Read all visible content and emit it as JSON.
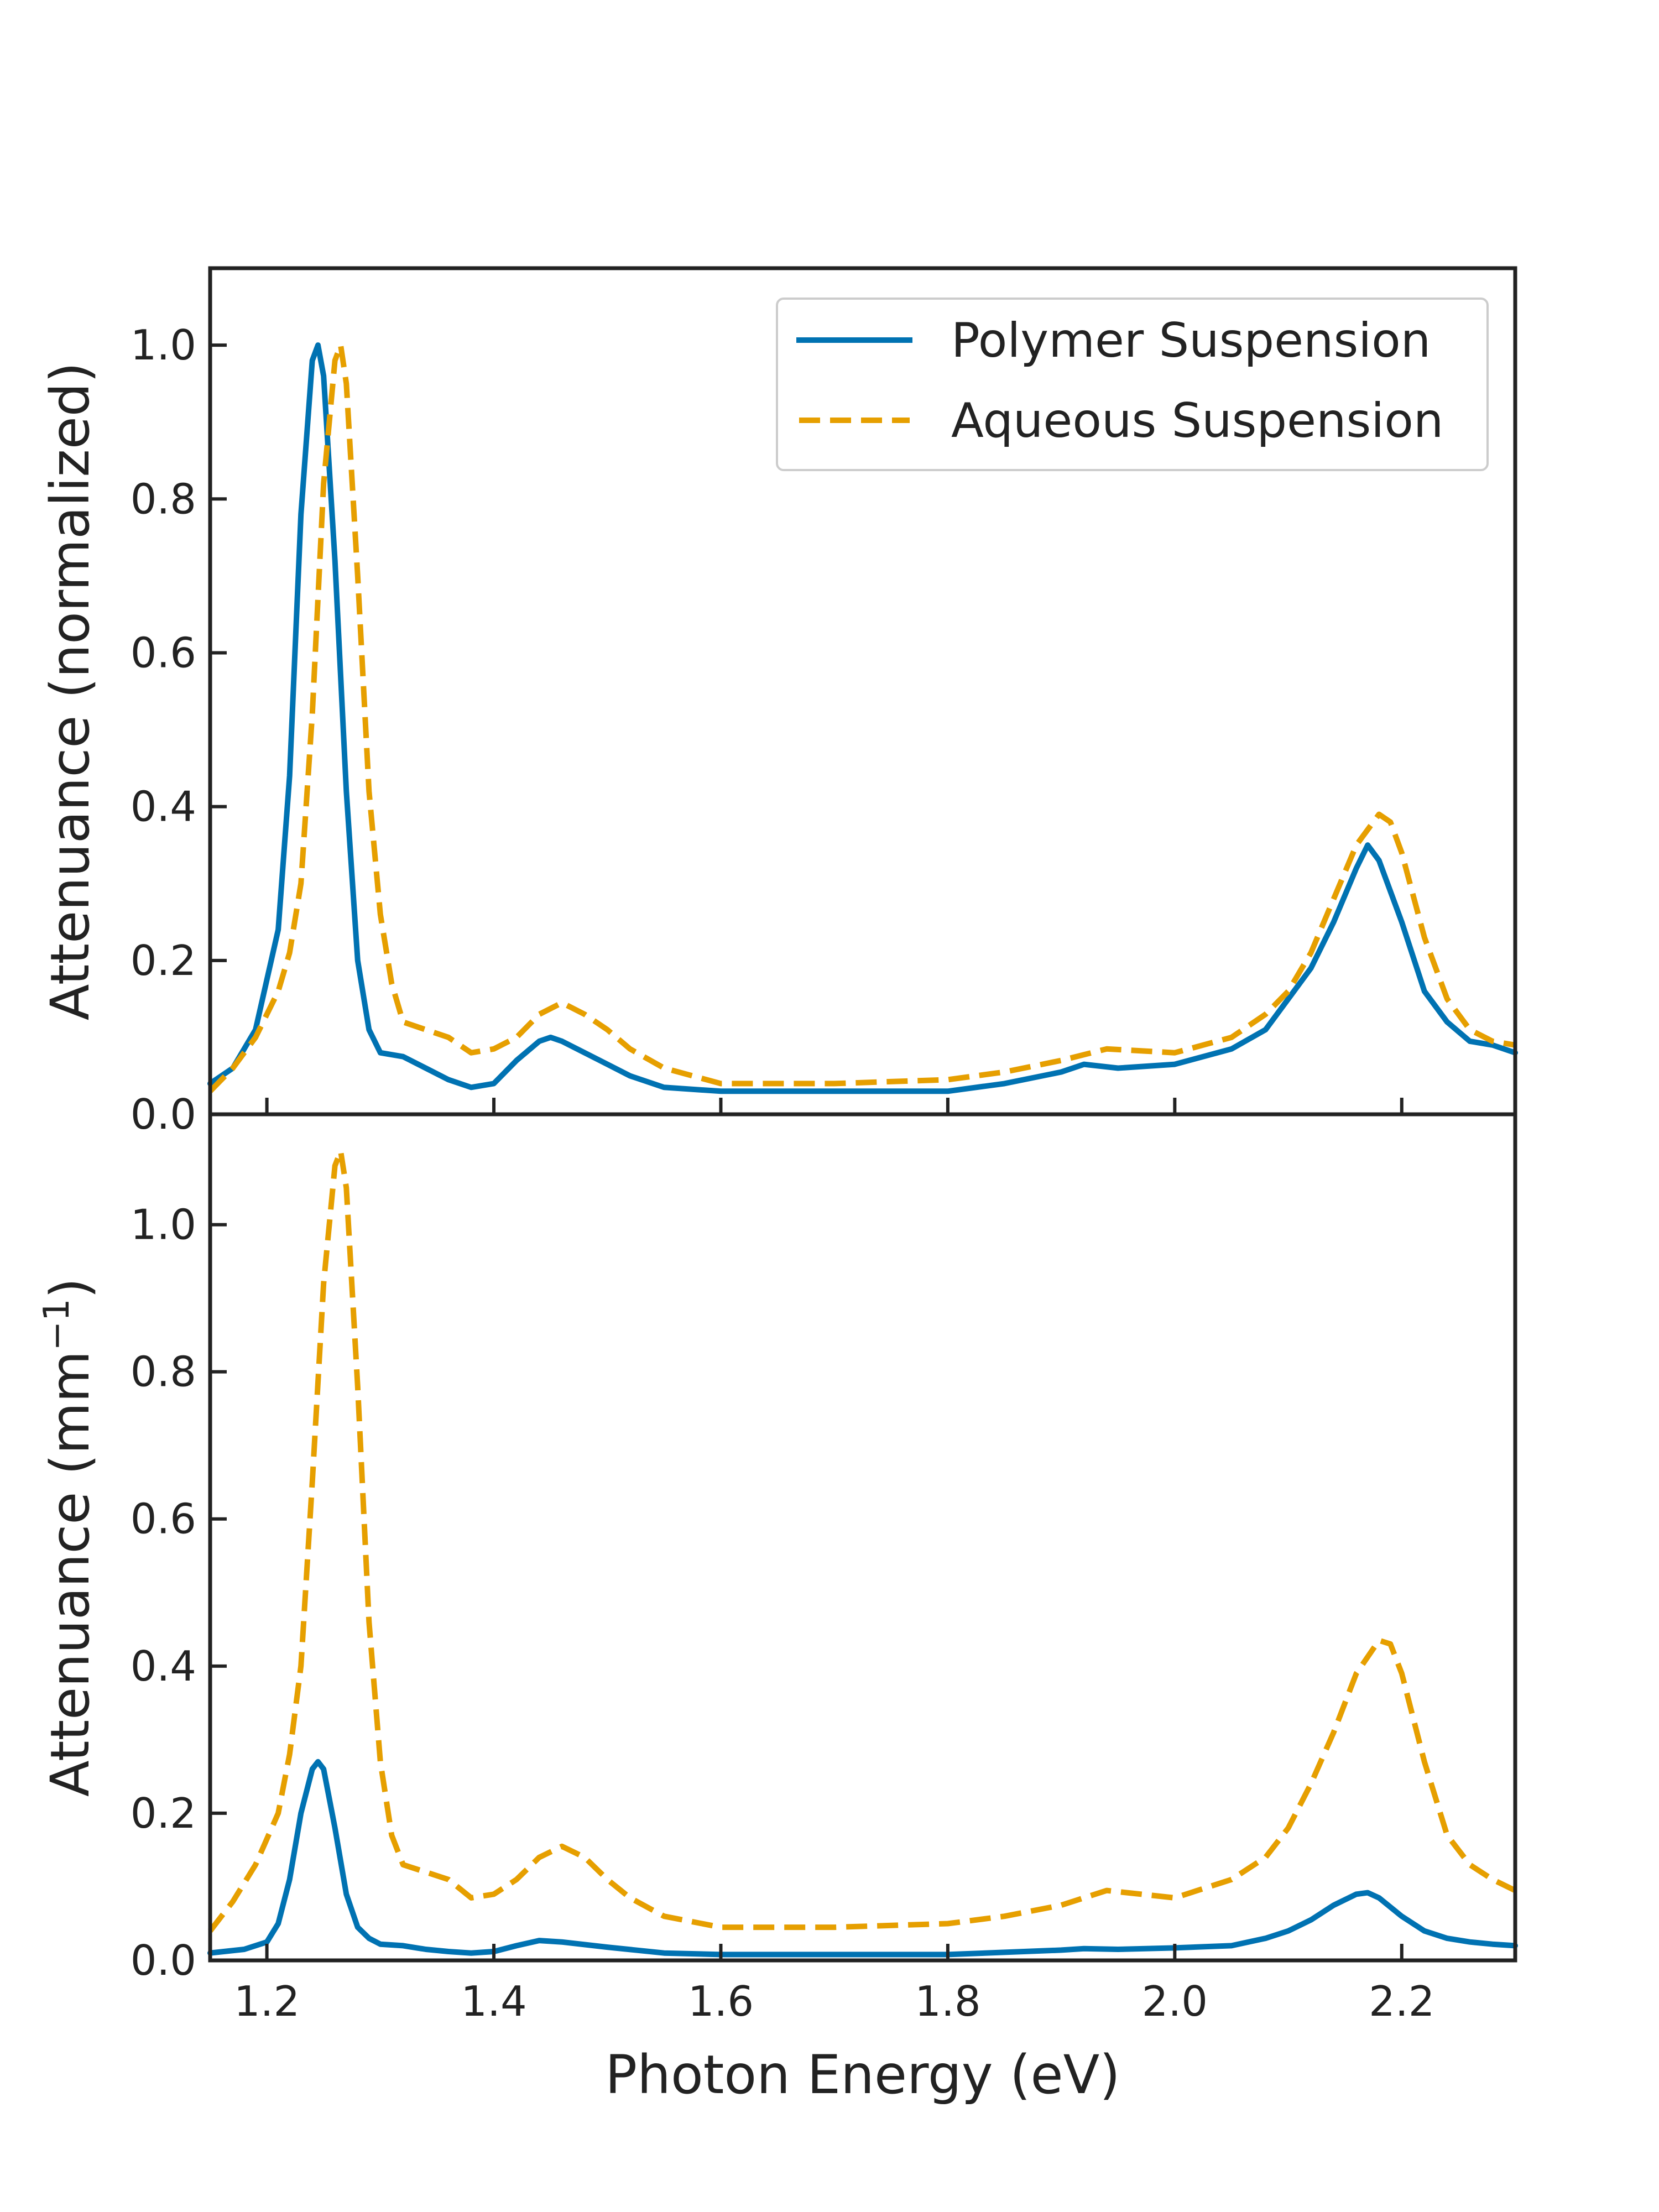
{
  "chart_data": [
    {
      "type": "line",
      "panel": "top",
      "title": "",
      "xlabel": "",
      "ylabel": "Attenuance (normalized)",
      "xlim": [
        1.15,
        2.3
      ],
      "ylim": [
        0.0,
        1.1
      ],
      "xticks": [
        1.2,
        1.4,
        1.6,
        1.8,
        2.0,
        2.2
      ],
      "yticks": [
        "0.0",
        "0.2",
        "0.4",
        "0.6",
        "0.8",
        "1.0"
      ],
      "ytick_values": [
        0.0,
        0.2,
        0.4,
        0.6,
        0.8,
        1.0
      ],
      "legend": {
        "position": "top-right",
        "entries": [
          "Polymer Suspension",
          "Aqueous Suspension"
        ]
      },
      "series": [
        {
          "name": "Polymer Suspension",
          "color": "#0072B2",
          "style": "solid",
          "x": [
            1.15,
            1.17,
            1.19,
            1.21,
            1.22,
            1.23,
            1.24,
            1.245,
            1.25,
            1.26,
            1.27,
            1.28,
            1.29,
            1.3,
            1.32,
            1.34,
            1.36,
            1.38,
            1.4,
            1.42,
            1.44,
            1.45,
            1.46,
            1.48,
            1.5,
            1.52,
            1.55,
            1.6,
            1.7,
            1.8,
            1.85,
            1.9,
            1.92,
            1.95,
            2.0,
            2.05,
            2.08,
            2.1,
            2.12,
            2.14,
            2.16,
            2.17,
            2.18,
            2.2,
            2.22,
            2.24,
            2.26,
            2.28,
            2.3
          ],
          "y": [
            0.04,
            0.06,
            0.11,
            0.24,
            0.44,
            0.78,
            0.98,
            1.0,
            0.96,
            0.72,
            0.42,
            0.2,
            0.11,
            0.08,
            0.075,
            0.06,
            0.045,
            0.035,
            0.04,
            0.07,
            0.095,
            0.1,
            0.095,
            0.08,
            0.065,
            0.05,
            0.035,
            0.03,
            0.03,
            0.03,
            0.04,
            0.055,
            0.065,
            0.06,
            0.065,
            0.085,
            0.11,
            0.15,
            0.19,
            0.25,
            0.32,
            0.35,
            0.33,
            0.25,
            0.16,
            0.12,
            0.095,
            0.09,
            0.08
          ]
        },
        {
          "name": "Aqueous Suspension",
          "color": "#E69F00",
          "style": "dashed",
          "x": [
            1.15,
            1.17,
            1.19,
            1.21,
            1.22,
            1.23,
            1.24,
            1.25,
            1.26,
            1.265,
            1.27,
            1.28,
            1.29,
            1.3,
            1.31,
            1.32,
            1.34,
            1.36,
            1.38,
            1.4,
            1.42,
            1.44,
            1.46,
            1.48,
            1.5,
            1.52,
            1.55,
            1.6,
            1.7,
            1.8,
            1.85,
            1.9,
            1.94,
            2.0,
            2.05,
            2.08,
            2.1,
            2.12,
            2.14,
            2.16,
            2.18,
            2.19,
            2.2,
            2.22,
            2.24,
            2.26,
            2.28,
            2.3
          ],
          "y": [
            0.03,
            0.06,
            0.1,
            0.16,
            0.21,
            0.3,
            0.52,
            0.82,
            0.98,
            1.0,
            0.95,
            0.7,
            0.42,
            0.26,
            0.17,
            0.12,
            0.11,
            0.1,
            0.08,
            0.085,
            0.1,
            0.13,
            0.145,
            0.13,
            0.11,
            0.085,
            0.06,
            0.04,
            0.04,
            0.045,
            0.055,
            0.07,
            0.085,
            0.08,
            0.1,
            0.13,
            0.16,
            0.21,
            0.28,
            0.35,
            0.39,
            0.38,
            0.34,
            0.23,
            0.15,
            0.11,
            0.095,
            0.09
          ]
        }
      ]
    },
    {
      "type": "line",
      "panel": "bottom",
      "title": "",
      "xlabel": "Photon Energy (eV)",
      "ylabel": "Attenuance (mm",
      "ylabel_sup": "−1",
      "ylabel_tail": ")",
      "xlim": [
        1.15,
        2.3
      ],
      "ylim": [
        0.0,
        1.15
      ],
      "xticks": [
        "1.2",
        "1.4",
        "1.6",
        "1.8",
        "2.0",
        "2.2"
      ],
      "xtick_values": [
        1.2,
        1.4,
        1.6,
        1.8,
        2.0,
        2.2
      ],
      "yticks": [
        "0.0",
        "0.2",
        "0.4",
        "0.6",
        "0.8",
        "1.0"
      ],
      "ytick_values": [
        0.0,
        0.2,
        0.4,
        0.6,
        0.8,
        1.0
      ],
      "series": [
        {
          "name": "Polymer Suspension",
          "color": "#0072B2",
          "style": "solid",
          "x": [
            1.15,
            1.18,
            1.2,
            1.21,
            1.22,
            1.23,
            1.24,
            1.245,
            1.25,
            1.26,
            1.27,
            1.28,
            1.29,
            1.3,
            1.32,
            1.34,
            1.36,
            1.38,
            1.4,
            1.42,
            1.44,
            1.46,
            1.5,
            1.55,
            1.6,
            1.7,
            1.8,
            1.9,
            1.92,
            1.95,
            2.0,
            2.05,
            2.08,
            2.1,
            2.12,
            2.14,
            2.16,
            2.17,
            2.18,
            2.2,
            2.22,
            2.24,
            2.26,
            2.28,
            2.3
          ],
          "y": [
            0.01,
            0.015,
            0.025,
            0.05,
            0.11,
            0.2,
            0.26,
            0.27,
            0.26,
            0.18,
            0.09,
            0.045,
            0.03,
            0.022,
            0.02,
            0.015,
            0.012,
            0.01,
            0.012,
            0.02,
            0.027,
            0.025,
            0.018,
            0.01,
            0.008,
            0.008,
            0.008,
            0.014,
            0.016,
            0.015,
            0.017,
            0.02,
            0.03,
            0.04,
            0.055,
            0.075,
            0.09,
            0.092,
            0.085,
            0.06,
            0.04,
            0.03,
            0.025,
            0.022,
            0.02
          ]
        },
        {
          "name": "Aqueous Suspension",
          "color": "#E69F00",
          "style": "dashed",
          "x": [
            1.15,
            1.17,
            1.19,
            1.21,
            1.22,
            1.23,
            1.24,
            1.25,
            1.26,
            1.265,
            1.27,
            1.28,
            1.29,
            1.3,
            1.31,
            1.32,
            1.34,
            1.36,
            1.38,
            1.4,
            1.42,
            1.44,
            1.46,
            1.48,
            1.5,
            1.52,
            1.55,
            1.6,
            1.7,
            1.8,
            1.85,
            1.9,
            1.94,
            2.0,
            2.05,
            2.08,
            2.1,
            2.12,
            2.14,
            2.16,
            2.18,
            2.19,
            2.2,
            2.22,
            2.24,
            2.26,
            2.28,
            2.3
          ],
          "y": [
            0.04,
            0.08,
            0.13,
            0.2,
            0.28,
            0.4,
            0.65,
            0.92,
            1.08,
            1.1,
            1.05,
            0.78,
            0.46,
            0.27,
            0.17,
            0.13,
            0.12,
            0.11,
            0.085,
            0.09,
            0.11,
            0.14,
            0.155,
            0.14,
            0.11,
            0.085,
            0.06,
            0.045,
            0.045,
            0.05,
            0.06,
            0.075,
            0.095,
            0.085,
            0.11,
            0.14,
            0.18,
            0.24,
            0.31,
            0.39,
            0.435,
            0.43,
            0.39,
            0.27,
            0.17,
            0.13,
            0.11,
            0.095
          ]
        }
      ]
    }
  ]
}
